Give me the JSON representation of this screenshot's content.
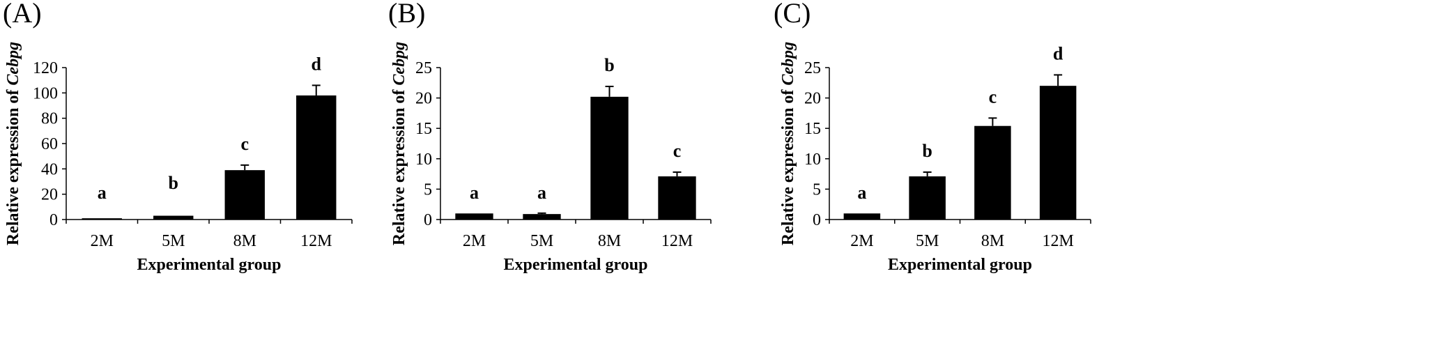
{
  "chart_data": [
    {
      "panel": "(A)",
      "type": "bar",
      "categories": [
        "2M",
        "5M",
        "8M",
        "12M"
      ],
      "values": [
        1,
        3,
        39,
        98
      ],
      "errors": [
        0,
        0,
        4,
        8
      ],
      "significance": [
        "a",
        "b",
        "c",
        "d"
      ],
      "xlabel": "Experimental group",
      "ylabel_prefix": "Relative expression of ",
      "ylabel_gene": "Cebpg",
      "ylim": [
        0,
        120
      ],
      "yticks": [
        0,
        20,
        40,
        60,
        80,
        100,
        120
      ],
      "bar_color": "#000000"
    },
    {
      "panel": "(B)",
      "type": "bar",
      "categories": [
        "2M",
        "5M",
        "8M",
        "12M"
      ],
      "values": [
        1,
        0.9,
        20.2,
        7.1
      ],
      "errors": [
        0,
        0.15,
        1.7,
        0.7
      ],
      "significance": [
        "a",
        "a",
        "b",
        "c"
      ],
      "xlabel": "Experimental group",
      "ylabel_prefix": "Relative expression of ",
      "ylabel_gene": "Cebpg",
      "ylim": [
        0,
        25
      ],
      "yticks": [
        0,
        5,
        10,
        15,
        20,
        25
      ],
      "bar_color": "#000000"
    },
    {
      "panel": "(C)",
      "type": "bar",
      "categories": [
        "2M",
        "5M",
        "8M",
        "12M"
      ],
      "values": [
        1,
        7.1,
        15.4,
        22
      ],
      "errors": [
        0,
        0.7,
        1.3,
        1.8
      ],
      "significance": [
        "a",
        "b",
        "c",
        "d"
      ],
      "xlabel": "Experimental group",
      "ylabel_prefix": "Relative expression of ",
      "ylabel_gene": "Cebpg",
      "ylim": [
        0,
        25
      ],
      "yticks": [
        0,
        5,
        10,
        15,
        20,
        25
      ],
      "bar_color": "#000000"
    }
  ]
}
